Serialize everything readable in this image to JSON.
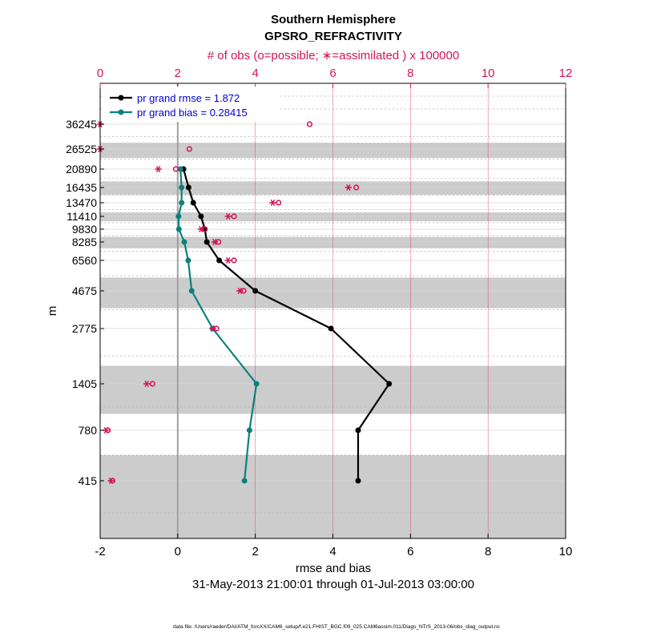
{
  "colors": {
    "obs_axis": "#d4145a",
    "rmse": "#000000",
    "bias": "#0b8080",
    "band": "#cccccc",
    "legend_text": "#0000cc"
  },
  "chart_data": {
    "type": "line",
    "title": "Southern Hemisphere",
    "subtitle": "GPSRO_REFRACTIVITY",
    "top_axis_label": "# of obs (o=possible; ∗=assimilated ) x 100000",
    "xlabel": "rmse and bias",
    "ylabel": "m",
    "date_range": "31-May-2013 21:00:01 through 01-Jul-2013 03:00:00",
    "footer": "data file: /Users/raeder/DAI/ATM_forcXX/CAM6_setup/f.e21.FHIST_BGC.f09_025.CAM6assim.011/Diags_NTrS_2013-06/obs_diag_output.nc",
    "xlim": [
      -2,
      10
    ],
    "xticks": [
      "-2",
      "0",
      "2",
      "4",
      "6",
      "8",
      "10"
    ],
    "top_xlim": [
      0,
      12
    ],
    "top_xticks": [
      "0",
      "2",
      "4",
      "6",
      "8",
      "10",
      "12"
    ],
    "levels": [
      "415",
      "780",
      "1405",
      "2775",
      "4675",
      "6560",
      "8285",
      "9830",
      "11410",
      "13470",
      "16435",
      "20890",
      "26525",
      "36245"
    ],
    "shaded_layers": [
      [
        "0",
        "600"
      ],
      [
        "1000",
        "1850"
      ],
      [
        "3800",
        "5500"
      ],
      [
        "7700",
        "8900"
      ],
      [
        "10800",
        "12000"
      ],
      [
        "15000",
        "17900"
      ],
      [
        "24000",
        "29000"
      ]
    ],
    "legend": [
      "pr grand rmse = 1.872",
      "pr grand bias = 0.28415"
    ],
    "series": [
      {
        "name": "pr grand rmse = 1.872",
        "color": "#000000",
        "points": [
          {
            "level": "20890",
            "x": 0.15
          },
          {
            "level": "16435",
            "x": 0.28
          },
          {
            "level": "13470",
            "x": 0.4
          },
          {
            "level": "11410",
            "x": 0.6
          },
          {
            "level": "9830",
            "x": 0.7
          },
          {
            "level": "8285",
            "x": 0.75
          },
          {
            "level": "6560",
            "x": 1.07
          },
          {
            "level": "4675",
            "x": 2.0
          },
          {
            "level": "2775",
            "x": 3.95
          },
          {
            "level": "1405",
            "x": 5.45
          },
          {
            "level": "780",
            "x": 4.65
          },
          {
            "level": "415",
            "x": 4.65
          }
        ]
      },
      {
        "name": "pr grand bias = 0.28415",
        "color": "#0b8080",
        "points": [
          {
            "level": "20890",
            "x": 0.07
          },
          {
            "level": "16435",
            "x": 0.1
          },
          {
            "level": "13470",
            "x": 0.1
          },
          {
            "level": "11410",
            "x": 0.02
          },
          {
            "level": "9830",
            "x": 0.03
          },
          {
            "level": "8285",
            "x": 0.17
          },
          {
            "level": "6560",
            "x": 0.27
          },
          {
            "level": "4675",
            "x": 0.36
          },
          {
            "level": "2775",
            "x": 0.9
          },
          {
            "level": "1405",
            "x": 2.03
          },
          {
            "level": "780",
            "x": 1.85
          },
          {
            "level": "415",
            "x": 1.72
          }
        ]
      }
    ],
    "obs_counts": [
      {
        "level": "36245",
        "possible": 5.4,
        "assimilated": 0.0
      },
      {
        "level": "26525",
        "possible": 2.3,
        "assimilated": 0.0
      },
      {
        "level": "20890",
        "possible": 1.95,
        "assimilated": 1.5
      },
      {
        "level": "16435",
        "possible": 6.6,
        "assimilated": 6.4
      },
      {
        "level": "13470",
        "possible": 4.6,
        "assimilated": 4.45
      },
      {
        "level": "11410",
        "possible": 3.45,
        "assimilated": 3.3
      },
      {
        "level": "9830",
        "possible": 2.7,
        "assimilated": 2.6
      },
      {
        "level": "8285",
        "possible": 3.05,
        "assimilated": 2.95
      },
      {
        "level": "6560",
        "possible": 3.45,
        "assimilated": 3.3
      },
      {
        "level": "4675",
        "possible": 3.7,
        "assimilated": 3.6
      },
      {
        "level": "2775",
        "possible": 3.0,
        "assimilated": 2.9
      },
      {
        "level": "1405",
        "possible": 1.35,
        "assimilated": 1.2
      },
      {
        "level": "780",
        "possible": 0.2,
        "assimilated": 0.15
      },
      {
        "level": "415",
        "possible": 0.32,
        "assimilated": 0.28
      }
    ]
  }
}
